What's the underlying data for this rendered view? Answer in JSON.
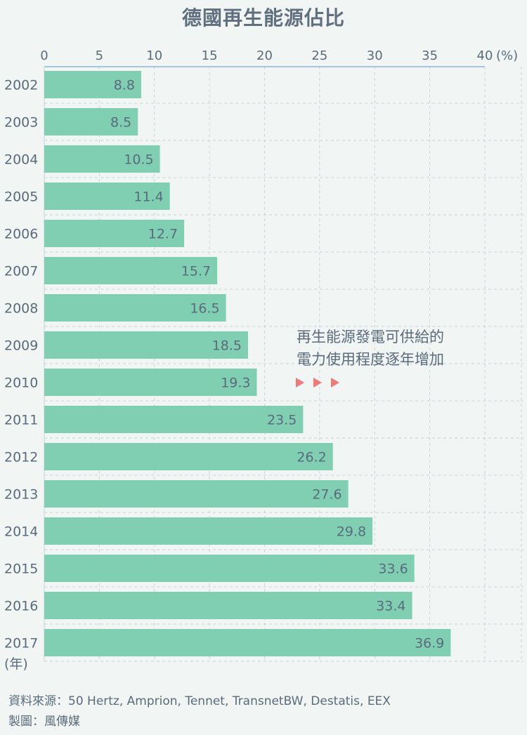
{
  "colors": {
    "bar": "#80cfb3",
    "axis": "#a9c6d8",
    "grid": "#c9d4dc",
    "text": "#5a6b7b",
    "arrow": "#f07a7a"
  },
  "chart_data": {
    "type": "bar",
    "orientation": "horizontal",
    "title": "德國再生能源佔比",
    "x_unit": "(%)",
    "y_unit": "(年)",
    "xlim": [
      0,
      40
    ],
    "x_ticks": [
      0,
      5,
      10,
      15,
      20,
      25,
      30,
      35,
      40
    ],
    "categories": [
      "2002",
      "2003",
      "2004",
      "2005",
      "2006",
      "2007",
      "2008",
      "2009",
      "2010",
      "2011",
      "2012",
      "2013",
      "2014",
      "2015",
      "2016",
      "2017"
    ],
    "values": [
      8.8,
      8.5,
      10.5,
      11.4,
      12.7,
      15.7,
      16.5,
      18.5,
      19.3,
      23.5,
      26.2,
      27.6,
      29.8,
      33.6,
      33.4,
      36.9
    ],
    "value_labels": [
      "8.8",
      "8.5",
      "10.5",
      "11.4",
      "12.7",
      "15.7",
      "16.5",
      "18.5",
      "19.3",
      "23.5",
      "26.2",
      "27.6",
      "29.8",
      "33.6",
      "33.4",
      "36.9"
    ],
    "grid": true,
    "annotation": [
      "再生能源發電可供給的",
      "電力使用程度逐年增加"
    ]
  },
  "footer": {
    "source": "資料來源：50 Hertz, Amprion, Tennet, TransnetBW, Destatis, EEX",
    "maker": "製圖：風傳媒"
  }
}
